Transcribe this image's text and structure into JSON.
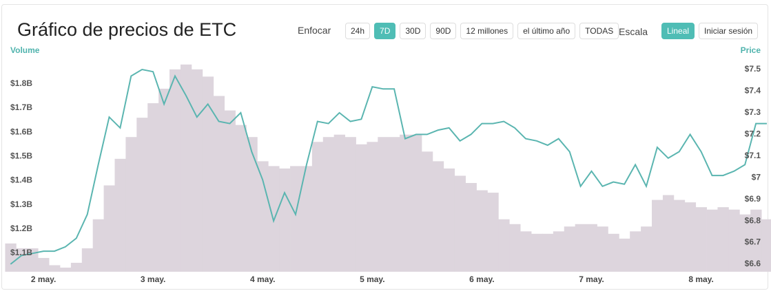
{
  "header": {
    "title": "Gráfico de precios de ETC",
    "focus_label": "Enfocar",
    "focus_options": [
      {
        "label": "24h",
        "active": false
      },
      {
        "label": "7D",
        "active": true
      },
      {
        "label": "30D",
        "active": false
      },
      {
        "label": "90D",
        "active": false
      },
      {
        "label": "12 millones",
        "active": false
      },
      {
        "label": "el último año",
        "active": false
      },
      {
        "label": "TODAS",
        "active": false
      }
    ],
    "scale_label": "Escala",
    "scale_options": [
      {
        "label": "Lineal",
        "active": true
      },
      {
        "label": "Iniciar sesión",
        "active": false
      }
    ]
  },
  "chart_data": {
    "type": "line",
    "ylabel": "Volume",
    "y2label": "Price",
    "x": [
      -0.3,
      -0.2,
      -0.1,
      0,
      0.1,
      0.2,
      0.3,
      0.4,
      0.5,
      0.6,
      0.7,
      0.8,
      0.9,
      1.0,
      1.1,
      1.2,
      1.3,
      1.4,
      1.5,
      1.6,
      1.7,
      1.8,
      1.9,
      2.0,
      2.1,
      2.2,
      2.3,
      2.4,
      2.5,
      2.6,
      2.7,
      2.8,
      2.9,
      3.0,
      3.1,
      3.2,
      3.3,
      3.4,
      3.5,
      3.6,
      3.7,
      3.8,
      3.9,
      4.0,
      4.1,
      4.2,
      4.3,
      4.4,
      4.5,
      4.6,
      4.7,
      4.8,
      4.9,
      5.0,
      5.1,
      5.2,
      5.3,
      5.4,
      5.5,
      5.6,
      5.7,
      5.8,
      5.9,
      6.0,
      6.1,
      6.2,
      6.3,
      6.4,
      6.5,
      6.6
    ],
    "xlim": [
      -0.365,
      6.6
    ],
    "xticks": [
      {
        "value": 0,
        "label": "2 may."
      },
      {
        "value": 1,
        "label": "3 may."
      },
      {
        "value": 2,
        "label": "4 may."
      },
      {
        "value": 3,
        "label": "5 may."
      },
      {
        "value": 4,
        "label": "6 may."
      },
      {
        "value": 5,
        "label": "7 may."
      },
      {
        "value": 6,
        "label": "8 may."
      }
    ],
    "ylim": [
      1.023,
      1.905
    ],
    "yticks": [
      {
        "value": 1.1,
        "label": "$1.1B"
      },
      {
        "value": 1.2,
        "label": "$1.2B"
      },
      {
        "value": 1.3,
        "label": "$1.3B"
      },
      {
        "value": 1.4,
        "label": "$1.4B"
      },
      {
        "value": 1.5,
        "label": "$1.5B"
      },
      {
        "value": 1.6,
        "label": "$1.6B"
      },
      {
        "value": 1.7,
        "label": "$1.7B"
      },
      {
        "value": 1.8,
        "label": "$1.8B"
      }
    ],
    "y2lim": [
      6.565,
      7.551
    ],
    "y2ticks": [
      {
        "value": 6.6,
        "label": "$6.6"
      },
      {
        "value": 6.7,
        "label": "$6.7"
      },
      {
        "value": 6.8,
        "label": "$6.8"
      },
      {
        "value": 6.9,
        "label": "$6.9"
      },
      {
        "value": 7.0,
        "label": "$7"
      },
      {
        "value": 7.1,
        "label": "$7.1"
      },
      {
        "value": 7.2,
        "label": "$7.2"
      },
      {
        "value": 7.3,
        "label": "$7.3"
      },
      {
        "value": 7.4,
        "label": "$7.4"
      },
      {
        "value": 7.5,
        "label": "$7.5"
      }
    ],
    "axis_color": "#4fb3ad",
    "series": [
      {
        "type": "bar",
        "axis": "y",
        "color": "#ddd5dd",
        "values": [
          1.14,
          1.12,
          1.12,
          1.08,
          1.05,
          1.04,
          1.06,
          1.12,
          1.24,
          1.38,
          1.49,
          1.58,
          1.66,
          1.72,
          1.78,
          1.86,
          1.88,
          1.86,
          1.83,
          1.75,
          1.69,
          1.63,
          1.58,
          1.48,
          1.46,
          1.45,
          1.46,
          1.46,
          1.56,
          1.58,
          1.59,
          1.58,
          1.55,
          1.56,
          1.58,
          1.58,
          1.59,
          1.59,
          1.52,
          1.48,
          1.45,
          1.42,
          1.39,
          1.36,
          1.35,
          1.24,
          1.22,
          1.19,
          1.18,
          1.18,
          1.19,
          1.21,
          1.22,
          1.22,
          1.21,
          1.18,
          1.16,
          1.19,
          1.21,
          1.32,
          1.34,
          1.32,
          1.31,
          1.29,
          1.28,
          1.29,
          1.28,
          1.26,
          1.28,
          1.24
        ]
      },
      {
        "type": "line",
        "axis": "y2",
        "color": "#5ab5b0",
        "values": [
          6.6,
          6.64,
          6.65,
          6.66,
          6.66,
          6.68,
          6.72,
          6.83,
          7.06,
          7.28,
          7.23,
          7.47,
          7.5,
          7.49,
          7.34,
          7.47,
          7.38,
          7.28,
          7.34,
          7.26,
          7.25,
          7.3,
          7.12,
          6.99,
          6.8,
          6.93,
          6.83,
          7.06,
          7.26,
          7.25,
          7.3,
          7.26,
          7.27,
          7.42,
          7.41,
          7.41,
          7.18,
          7.2,
          7.2,
          7.22,
          7.23,
          7.17,
          7.2,
          7.25,
          7.25,
          7.26,
          7.23,
          7.18,
          7.17,
          7.15,
          7.18,
          7.12,
          6.96,
          7.03,
          6.96,
          6.98,
          6.97,
          7.06,
          6.96,
          7.14,
          7.09,
          7.12,
          7.2,
          7.12,
          7.01,
          7.01,
          7.03,
          7.06,
          7.25,
          7.25
        ]
      }
    ]
  }
}
